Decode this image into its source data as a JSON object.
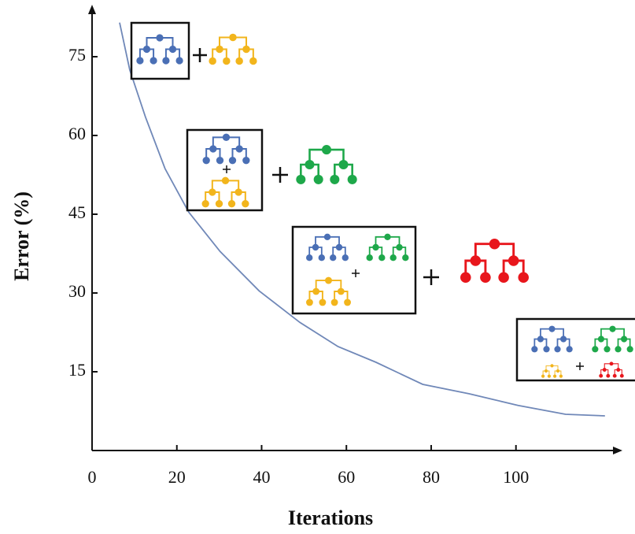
{
  "chart_data": {
    "type": "line",
    "xlabel": "Iterations",
    "ylabel": "Error (%)",
    "x": [
      6.5,
      8.9,
      12.6,
      17.2,
      22.8,
      30.2,
      39.4,
      49,
      58,
      67,
      78,
      89,
      100.5,
      111.7,
      121
    ],
    "values": [
      81.5,
      72.5,
      63.5,
      53.7,
      45.4,
      37.9,
      30.4,
      24.4,
      19.8,
      16.8,
      12.6,
      10.8,
      8.6,
      6.9,
      6.6
    ],
    "color": "#7088b8",
    "xlim": [
      0,
      124
    ],
    "ylim": [
      0,
      84
    ],
    "xticks": [
      0,
      20,
      40,
      60,
      80,
      100
    ],
    "yticks": [
      15,
      30,
      45,
      60,
      75
    ]
  }
}
